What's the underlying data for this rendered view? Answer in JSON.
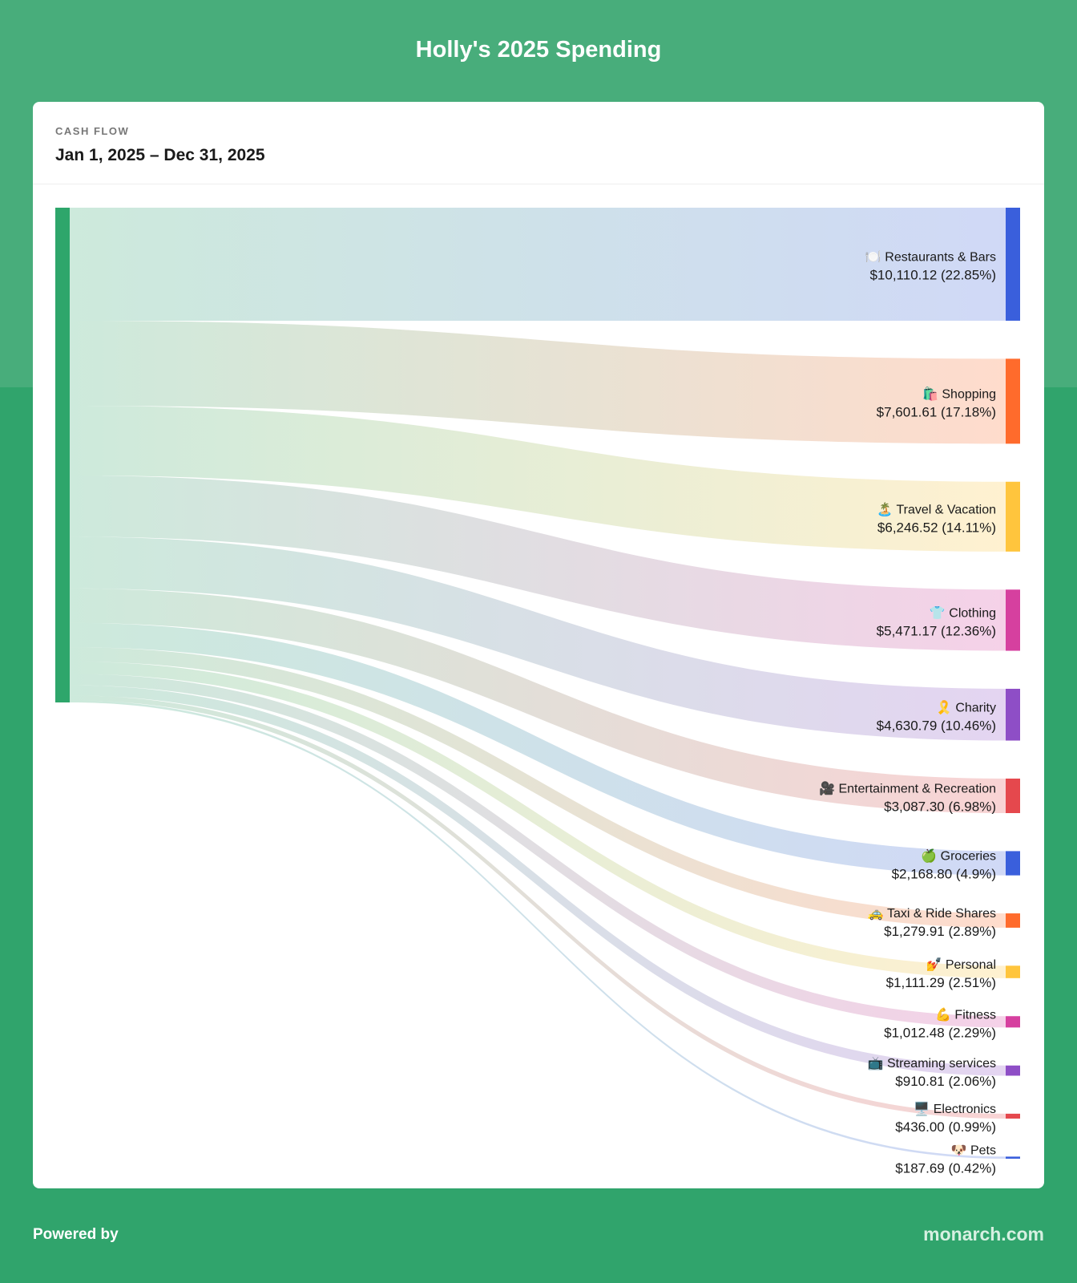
{
  "header": {
    "title": "Holly's 2025 Spending"
  },
  "card": {
    "section_label": "CASH FLOW",
    "date_range": "Jan 1, 2025 – Dec 31, 2025"
  },
  "footer": {
    "powered_by": "Powered by",
    "brand": "monarch.com"
  },
  "colors": {
    "background": "#30a46c",
    "source_node": "#2ea66b"
  },
  "chart_data": {
    "type": "sankey",
    "source_color": "#2ea66b",
    "targets": [
      {
        "icon": "🍽️",
        "name": "Restaurants & Bars",
        "amount": "$10,110.12",
        "percent": "(22.85%)",
        "value": 10110.12,
        "color": "#3a5fdc"
      },
      {
        "icon": "🛍️",
        "name": "Shopping",
        "amount": "$7,601.61",
        "percent": "(17.18%)",
        "value": 7601.61,
        "color": "#ff6b2c"
      },
      {
        "icon": "🏝️",
        "name": "Travel & Vacation",
        "amount": "$6,246.52",
        "percent": "(14.11%)",
        "value": 6246.52,
        "color": "#ffc53d"
      },
      {
        "icon": "👕",
        "name": "Clothing",
        "amount": "$5,471.17",
        "percent": "(12.36%)",
        "value": 5471.17,
        "color": "#d6409f"
      },
      {
        "icon": "🎗️",
        "name": "Charity",
        "amount": "$4,630.79",
        "percent": "(10.46%)",
        "value": 4630.79,
        "color": "#8e4ec6"
      },
      {
        "icon": "🎥",
        "name": "Entertainment & Recreation",
        "amount": "$3,087.30",
        "percent": "(6.98%)",
        "value": 3087.3,
        "color": "#e5484d"
      },
      {
        "icon": "🍏",
        "name": "Groceries",
        "amount": "$2,168.80",
        "percent": "(4.9%)",
        "value": 2168.8,
        "color": "#3a5fdc"
      },
      {
        "icon": "🚕",
        "name": "Taxi & Ride Shares",
        "amount": "$1,279.91",
        "percent": "(2.89%)",
        "value": 1279.91,
        "color": "#ff6b2c"
      },
      {
        "icon": "💅",
        "name": "Personal",
        "amount": "$1,111.29",
        "percent": "(2.51%)",
        "value": 1111.29,
        "color": "#ffc53d"
      },
      {
        "icon": "💪",
        "name": "Fitness",
        "amount": "$1,012.48",
        "percent": "(2.29%)",
        "value": 1012.48,
        "color": "#d6409f"
      },
      {
        "icon": "📺",
        "name": "Streaming services",
        "amount": "$910.81",
        "percent": "(2.06%)",
        "value": 910.81,
        "color": "#8e4ec6"
      },
      {
        "icon": "🖥️",
        "name": "Electronics",
        "amount": "$436.00",
        "percent": "(0.99%)",
        "value": 436.0,
        "color": "#e5484d"
      },
      {
        "icon": "🐶",
        "name": "Pets",
        "amount": "$187.69",
        "percent": "(0.42%)",
        "value": 187.69,
        "color": "#3a5fdc"
      }
    ]
  }
}
